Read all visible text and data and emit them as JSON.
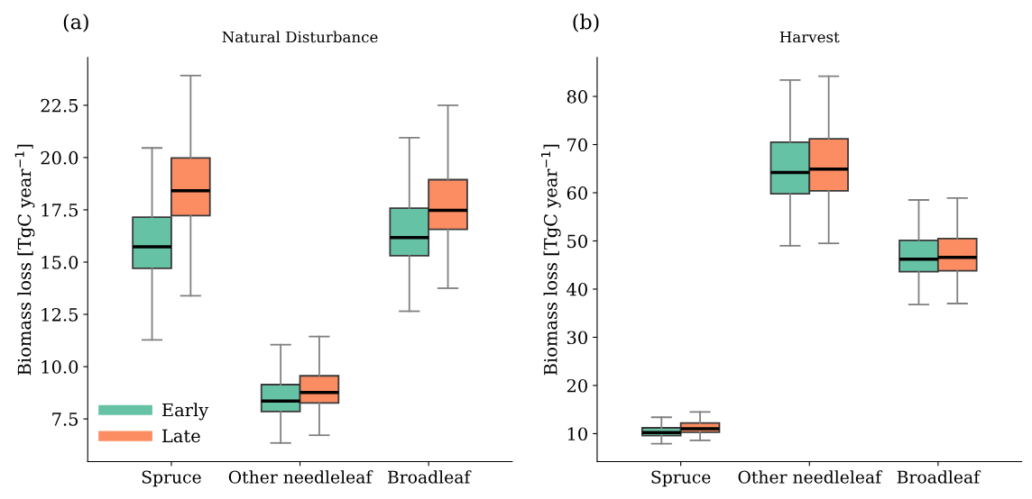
{
  "chart_data": [
    {
      "type": "box",
      "title": "Natural Disturbance",
      "annotations": [
        "(a)"
      ],
      "ylabel": "Biomass loss [TgC year$^{−1}$]",
      "categories": [
        "Spruce",
        "Other needleleaf",
        "Broadleaf"
      ],
      "ylim": [
        5.46,
        24.79
      ],
      "yticks": [
        7.5,
        {
          "value": 10,
          "label": "10.0"
        },
        12.5,
        {
          "value": 15,
          "label": "15.0"
        },
        17.5,
        {
          "value": 20,
          "label": "20.0"
        },
        22.5
      ],
      "legend": "bottom left",
      "grid": false,
      "series": [
        {
          "name": "Early",
          "color": "#66c2a5",
          "boxes": [
            {
              "low": 11.28,
              "q1": 14.7,
              "median": 15.73,
              "q3": 17.15,
              "high": 20.46
            },
            {
              "low": 6.35,
              "q1": 7.85,
              "median": 8.35,
              "q3": 9.14,
              "high": 11.05
            },
            {
              "low": 12.65,
              "q1": 15.31,
              "median": 16.17,
              "q3": 17.58,
              "high": 20.95
            }
          ]
        },
        {
          "name": "Late",
          "color": "#fc8d62",
          "boxes": [
            {
              "low": 13.39,
              "q1": 17.22,
              "median": 18.41,
              "q3": 19.98,
              "high": 23.92
            },
            {
              "low": 6.72,
              "q1": 8.26,
              "median": 8.76,
              "q3": 9.56,
              "high": 11.44
            },
            {
              "low": 13.75,
              "q1": 16.57,
              "median": 17.48,
              "q3": 18.94,
              "high": 22.5
            }
          ]
        }
      ]
    },
    {
      "type": "box",
      "title": "Harvest",
      "annotations": [
        "(b)"
      ],
      "ylabel": "Biomass loss [TgC year$^{−1}$]",
      "categories": [
        "Spruce",
        "Other needleleaf",
        "Broadleaf"
      ],
      "ylim": [
        4.2,
        88.1
      ],
      "yticks": [
        10,
        20,
        30,
        40,
        50,
        60,
        70,
        80
      ],
      "grid": false,
      "series": [
        {
          "color": "#66c2a5",
          "boxes": [
            {
              "low": 7.9,
              "q1": 9.6,
              "median": 10.2,
              "q3": 11.2,
              "high": 13.4
            },
            {
              "low": 49.0,
              "q1": 59.8,
              "median": 64.2,
              "q3": 70.5,
              "high": 83.4
            },
            {
              "low": 36.8,
              "q1": 43.6,
              "median": 46.2,
              "q3": 50.1,
              "high": 58.5
            }
          ]
        },
        {
          "color": "#fc8d62",
          "boxes": [
            {
              "low": 8.6,
              "q1": 10.3,
              "median": 11.0,
              "q3": 12.2,
              "high": 14.5
            },
            {
              "low": 49.5,
              "q1": 60.4,
              "median": 64.9,
              "q3": 71.2,
              "high": 84.2
            },
            {
              "low": 37.0,
              "q1": 43.8,
              "median": 46.6,
              "q3": 50.5,
              "high": 58.9
            }
          ]
        }
      ]
    }
  ]
}
